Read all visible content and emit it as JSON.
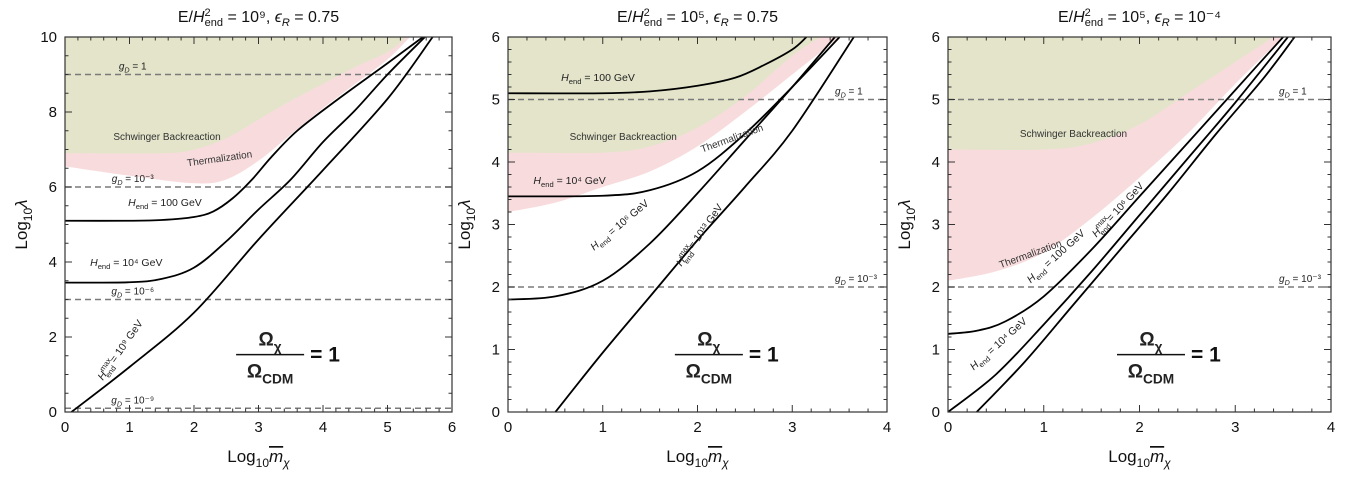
{
  "figure": {
    "xlabel": "Log₁₀m̄χ",
    "ylabel": "Log₁₀λ"
  },
  "chart_data": [
    {
      "type": "line",
      "title": "E/H²end = 10⁹, εR = 0.75",
      "xlabel": "Log₁₀m̄χ",
      "ylabel": "Log₁₀λ",
      "xlim": [
        0,
        6
      ],
      "ylim": [
        0,
        10
      ],
      "xticks": [
        0,
        1,
        2,
        3,
        4,
        5,
        6
      ],
      "yticks": [
        0,
        2,
        4,
        6,
        8,
        10
      ],
      "ratio_label": {
        "numerator": "Ωχ",
        "denominator": "ΩCDM",
        "rhs": "= 1"
      },
      "regions": [
        {
          "name": "Schwinger Backreaction",
          "color": "#e3e4c9",
          "boundary": [
            [
              0,
              6.9
            ],
            [
              1.5,
              6.9
            ],
            [
              2.0,
              7.0
            ],
            [
              2.5,
              7.3
            ],
            [
              3.0,
              7.8
            ],
            [
              3.5,
              8.3
            ],
            [
              4.0,
              8.75
            ],
            [
              4.5,
              9.2
            ],
            [
              5.0,
              9.6
            ],
            [
              5.3,
              10
            ]
          ]
        },
        {
          "name": "Thermalization",
          "color": "#f8dcdd",
          "boundary": [
            [
              0,
              6.55
            ],
            [
              1.0,
              6.3
            ],
            [
              2.0,
              6.1
            ],
            [
              2.5,
              6.2
            ],
            [
              3.0,
              6.7
            ],
            [
              3.5,
              7.4
            ],
            [
              4.0,
              8.1
            ],
            [
              4.5,
              8.75
            ],
            [
              5.0,
              9.4
            ],
            [
              5.35,
              10
            ]
          ]
        }
      ],
      "hlines": [
        {
          "y": 9,
          "label": "gD = 1"
        },
        {
          "y": 6,
          "label": "gD = 10⁻³"
        },
        {
          "y": 3,
          "label": "gD = 10⁻⁶"
        },
        {
          "y": 0.1,
          "label": "gD = 10⁻⁹"
        }
      ],
      "series": [
        {
          "name": "Hend = 100 GeV",
          "points": [
            [
              0,
              5.1
            ],
            [
              1.0,
              5.1
            ],
            [
              1.5,
              5.12
            ],
            [
              2.0,
              5.2
            ],
            [
              2.3,
              5.35
            ],
            [
              2.6,
              5.7
            ],
            [
              2.9,
              6.2
            ],
            [
              3.2,
              6.8
            ],
            [
              3.6,
              7.5
            ],
            [
              4.2,
              8.3
            ],
            [
              5.0,
              9.3
            ],
            [
              5.55,
              10
            ]
          ]
        },
        {
          "name": "Hend = 10⁴ GeV",
          "points": [
            [
              0,
              3.45
            ],
            [
              1.0,
              3.46
            ],
            [
              1.5,
              3.55
            ],
            [
              2.0,
              3.85
            ],
            [
              2.5,
              4.55
            ],
            [
              3.0,
              5.4
            ],
            [
              3.5,
              6.2
            ],
            [
              4.0,
              7.2
            ],
            [
              4.5,
              8.05
            ],
            [
              5.0,
              9.0
            ],
            [
              5.58,
              10
            ]
          ]
        },
        {
          "name": "Hmaxend = 10⁹ GeV",
          "points": [
            [
              0.1,
              0
            ],
            [
              1.0,
              1.2
            ],
            [
              2.0,
              2.65
            ],
            [
              3.0,
              4.6
            ],
            [
              4.0,
              6.45
            ],
            [
              5.0,
              8.35
            ],
            [
              5.7,
              10
            ]
          ]
        }
      ],
      "curve_labels": [
        {
          "text": "Hend = 100 GeV",
          "x": 1.55,
          "y": 5.5,
          "angle": 0
        },
        {
          "text": "Hend = 10⁴ GeV",
          "x": 0.95,
          "y": 3.9,
          "angle": 0
        },
        {
          "text": "Hmaxend = 10⁹ GeV",
          "x": 0.9,
          "y": 1.6,
          "angle": -55
        }
      ],
      "region_labels": [
        {
          "text": "Schwinger Backreaction",
          "x": 0.75,
          "y": 7.25,
          "angle": 0
        },
        {
          "text": "Thermalization",
          "x": 1.9,
          "y": 6.55,
          "angle": -8
        }
      ]
    },
    {
      "type": "line",
      "title": "E/H²end = 10⁵, εR = 0.75",
      "xlabel": "Log₁₀m̄χ",
      "ylabel": "Log₁₀λ",
      "xlim": [
        0,
        4
      ],
      "ylim": [
        0,
        6
      ],
      "xticks": [
        0,
        1,
        2,
        3,
        4
      ],
      "yticks": [
        0,
        1,
        2,
        3,
        4,
        5,
        6
      ],
      "ratio_label": {
        "numerator": "Ωχ",
        "denominator": "ΩCDM",
        "rhs": "= 1"
      },
      "regions": [
        {
          "name": "Schwinger Backreaction",
          "color": "#e3e4c9",
          "boundary": [
            [
              0,
              4.15
            ],
            [
              1.0,
              4.15
            ],
            [
              1.5,
              4.25
            ],
            [
              2.0,
              4.55
            ],
            [
              2.5,
              5.05
            ],
            [
              3.0,
              5.7
            ],
            [
              3.3,
              6
            ]
          ]
        },
        {
          "name": "Thermalization",
          "color": "#f8dcdd",
          "boundary": [
            [
              0,
              3.2
            ],
            [
              0.5,
              3.35
            ],
            [
              1.0,
              3.6
            ],
            [
              1.5,
              3.85
            ],
            [
              2.0,
              4.25
            ],
            [
              2.5,
              4.8
            ],
            [
              3.0,
              5.4
            ],
            [
              3.5,
              6
            ]
          ]
        }
      ],
      "hlines": [
        {
          "y": 5,
          "label": "gD = 1"
        },
        {
          "y": 2,
          "label": "gD = 10⁻³"
        }
      ],
      "series": [
        {
          "name": "Hend = 100 GeV",
          "points": [
            [
              0,
              5.1
            ],
            [
              1.0,
              5.1
            ],
            [
              1.5,
              5.13
            ],
            [
              2.0,
              5.22
            ],
            [
              2.4,
              5.35
            ],
            [
              2.7,
              5.55
            ],
            [
              3.0,
              5.8
            ],
            [
              3.15,
              6
            ]
          ]
        },
        {
          "name": "Hend = 10⁴ GeV",
          "points": [
            [
              0,
              3.45
            ],
            [
              1.0,
              3.46
            ],
            [
              1.5,
              3.55
            ],
            [
              2.0,
              3.85
            ],
            [
              2.5,
              4.45
            ],
            [
              3.0,
              5.2
            ],
            [
              3.5,
              6
            ]
          ]
        },
        {
          "name": "Hend = 10⁶ GeV",
          "points": [
            [
              0,
              1.8
            ],
            [
              0.5,
              1.85
            ],
            [
              1.0,
              2.1
            ],
            [
              1.5,
              2.7
            ],
            [
              2.0,
              3.5
            ],
            [
              2.5,
              4.35
            ],
            [
              3.0,
              5.2
            ],
            [
              3.45,
              6
            ]
          ]
        },
        {
          "name": "Hmaxend = 10¹³ GeV",
          "points": [
            [
              0.5,
              0
            ],
            [
              1.0,
              0.95
            ],
            [
              1.5,
              1.85
            ],
            [
              2.0,
              2.75
            ],
            [
              2.5,
              3.6
            ],
            [
              3.0,
              4.5
            ],
            [
              3.65,
              6
            ]
          ]
        }
      ],
      "curve_labels": [
        {
          "text": "Hend = 100 GeV",
          "x": 0.95,
          "y": 5.3,
          "angle": 0
        },
        {
          "text": "Hend = 10⁴ GeV",
          "x": 0.65,
          "y": 3.65,
          "angle": 0
        },
        {
          "text": "Hend = 10⁶ GeV",
          "x": 1.2,
          "y": 2.95,
          "angle": -40
        },
        {
          "text": "Hmaxend = 10¹³ GeV",
          "x": 2.05,
          "y": 2.8,
          "angle": -55
        }
      ],
      "region_labels": [
        {
          "text": "Schwinger Backreaction",
          "x": 0.65,
          "y": 4.35,
          "angle": 0
        },
        {
          "text": "Thermalization",
          "x": 2.05,
          "y": 4.15,
          "angle": -20
        }
      ]
    },
    {
      "type": "line",
      "title": "E/H²end = 10⁵, εR = 10⁻⁴",
      "xlabel": "Log₁₀m̄χ",
      "ylabel": "Log₁₀λ",
      "xlim": [
        0,
        4
      ],
      "ylim": [
        0,
        6
      ],
      "xticks": [
        0,
        1,
        2,
        3,
        4
      ],
      "yticks": [
        0,
        1,
        2,
        3,
        4,
        5,
        6
      ],
      "ratio_label": {
        "numerator": "Ωχ",
        "denominator": "ΩCDM",
        "rhs": "= 1"
      },
      "regions": [
        {
          "name": "Schwinger Backreaction",
          "color": "#e3e4c9",
          "boundary": [
            [
              0,
              4.2
            ],
            [
              1.0,
              4.2
            ],
            [
              1.5,
              4.3
            ],
            [
              2.0,
              4.6
            ],
            [
              2.5,
              5.1
            ],
            [
              3.0,
              5.6
            ],
            [
              3.4,
              6
            ]
          ]
        },
        {
          "name": "Thermalization",
          "color": "#f8dcdd",
          "boundary": [
            [
              0,
              2.1
            ],
            [
              0.5,
              2.25
            ],
            [
              1.0,
              2.55
            ],
            [
              1.5,
              3.1
            ],
            [
              2.0,
              3.75
            ],
            [
              2.5,
              4.45
            ],
            [
              3.0,
              5.25
            ],
            [
              3.5,
              6
            ]
          ]
        }
      ],
      "hlines": [
        {
          "y": 5,
          "label": "gD = 1"
        },
        {
          "y": 2,
          "label": "gD = 10⁻³"
        }
      ],
      "series": [
        {
          "name": "Hend = 100 GeV",
          "points": [
            [
              0,
              1.25
            ],
            [
              0.3,
              1.3
            ],
            [
              0.6,
              1.45
            ],
            [
              1.0,
              1.85
            ],
            [
              1.5,
              2.6
            ],
            [
              2.0,
              3.45
            ],
            [
              2.5,
              4.3
            ],
            [
              3.0,
              5.15
            ],
            [
              3.5,
              6
            ]
          ]
        },
        {
          "name": "Hend = 10⁴ GeV",
          "points": [
            [
              0,
              0
            ],
            [
              0.5,
              0.6
            ],
            [
              1.0,
              1.4
            ],
            [
              1.5,
              2.25
            ],
            [
              2.0,
              3.15
            ],
            [
              2.5,
              4.05
            ],
            [
              3.0,
              4.95
            ],
            [
              3.55,
              6
            ]
          ]
        },
        {
          "name": "Hmaxend = 10⁶ GeV",
          "points": [
            [
              0.3,
              0
            ],
            [
              0.8,
              0.8
            ],
            [
              1.3,
              1.7
            ],
            [
              1.8,
              2.6
            ],
            [
              2.3,
              3.5
            ],
            [
              2.8,
              4.45
            ],
            [
              3.3,
              5.35
            ],
            [
              3.62,
              6
            ]
          ]
        }
      ],
      "curve_labels": [
        {
          "text": "Hend = 100 GeV",
          "x": 1.15,
          "y": 2.45,
          "angle": -42
        },
        {
          "text": "Hend = 10⁴ GeV",
          "x": 0.55,
          "y": 1.05,
          "angle": -42
        },
        {
          "text": "Hmaxend = 10⁶ GeV",
          "x": 1.8,
          "y": 3.2,
          "angle": -47
        }
      ],
      "region_labels": [
        {
          "text": "Schwinger Backreaction",
          "x": 0.75,
          "y": 4.4,
          "angle": 0
        },
        {
          "text": "Thermalization",
          "x": 0.55,
          "y": 2.3,
          "angle": -20
        }
      ]
    }
  ]
}
